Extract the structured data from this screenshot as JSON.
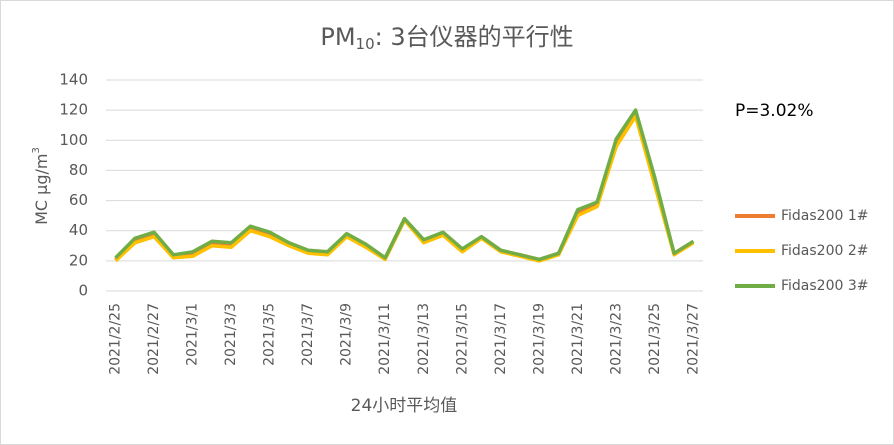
{
  "chart_data": {
    "type": "line",
    "title": {
      "main": "PM",
      "subscript": "10",
      "rest": ": 3台仪器的平行性"
    },
    "y_label": {
      "text": "MC µg/m",
      "superscript": "3"
    },
    "x_label": "24小时平均值",
    "annotation": "P=3.02%",
    "categories": [
      "2021/2/25",
      null,
      "2021/2/27",
      null,
      "2021/3/1",
      null,
      "2021/3/3",
      null,
      "2021/3/5",
      null,
      "2021/3/7",
      null,
      "2021/3/9",
      null,
      "2021/3/11",
      null,
      "2021/3/13",
      null,
      "2021/3/15",
      null,
      "2021/3/17",
      null,
      "2021/3/19",
      null,
      "2021/3/21",
      null,
      "2021/3/23",
      null,
      "2021/3/25",
      null,
      "2021/3/27"
    ],
    "series": [
      {
        "name": "Fidas200 1#",
        "color": "#ed7d31",
        "values": [
          21,
          34,
          38,
          23,
          25,
          32,
          31,
          42,
          38,
          31,
          26,
          25,
          37,
          30,
          22,
          48,
          33,
          38,
          27,
          36,
          27,
          24,
          21,
          25,
          52,
          58,
          99,
          118,
          72,
          25,
          33
        ]
      },
      {
        "name": "Fidas200 2#",
        "color": "#ffc000",
        "values": [
          20,
          32,
          36,
          22,
          23,
          30,
          29,
          40,
          36,
          30,
          25,
          24,
          36,
          29,
          21,
          47,
          32,
          37,
          26,
          35,
          26,
          23,
          20,
          24,
          50,
          56,
          96,
          116,
          70,
          24,
          32
        ]
      },
      {
        "name": "Fidas200 3#",
        "color": "#70ad47",
        "values": [
          22,
          35,
          39,
          24,
          26,
          33,
          32,
          43,
          39,
          32,
          27,
          26,
          38,
          31,
          22,
          48,
          34,
          39,
          28,
          36,
          27,
          24,
          21,
          25,
          54,
          59,
          101,
          120,
          75,
          25,
          33
        ]
      }
    ],
    "ylim": [
      0,
      140
    ],
    "yticks": [
      0,
      20,
      40,
      60,
      80,
      100,
      120,
      140
    ],
    "grid": true,
    "legend": "right"
  }
}
